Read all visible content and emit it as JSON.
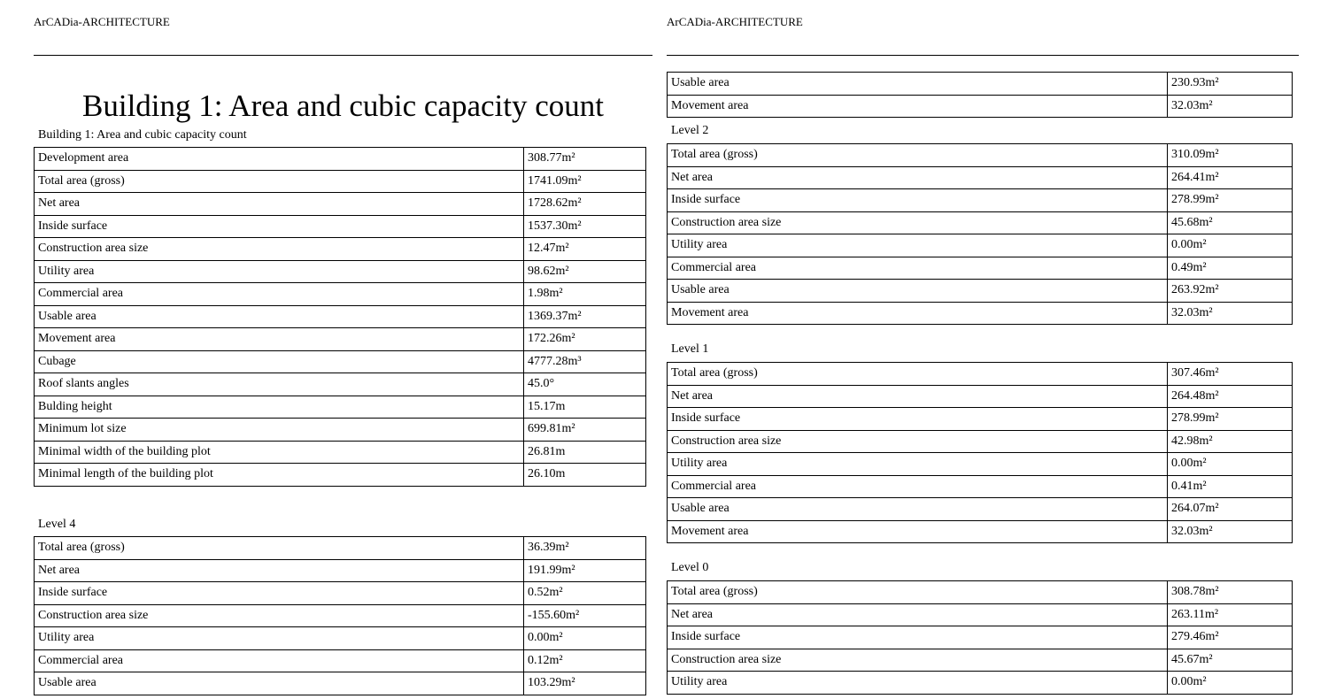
{
  "header_text": "ArCADia-ARCHITECTURE",
  "left_page": {
    "title": "Building 1: Area and cubic capacity count",
    "sections": [
      {
        "label": "Building 1: Area and cubic capacity count",
        "rows": [
          [
            "Development area",
            "308.77m²"
          ],
          [
            "Total area (gross)",
            "1741.09m²"
          ],
          [
            "Net area",
            "1728.62m²"
          ],
          [
            "Inside surface",
            "1537.30m²"
          ],
          [
            "Construction area size",
            "12.47m²"
          ],
          [
            "Utility area",
            "98.62m²"
          ],
          [
            "Commercial area",
            "1.98m²"
          ],
          [
            "Usable area",
            "1369.37m²"
          ],
          [
            "Movement area",
            "172.26m²"
          ],
          [
            "Cubage",
            "4777.28m³"
          ],
          [
            "Roof slants angles",
            "45.0°"
          ],
          [
            "Bulding height",
            "15.17m"
          ],
          [
            "Minimum lot size",
            "699.81m²"
          ],
          [
            "Minimal width of the building plot",
            "26.81m"
          ],
          [
            "Minimal length of the building plot",
            "26.10m"
          ]
        ]
      },
      {
        "label": "Level 4",
        "rows": [
          [
            "Total area (gross)",
            "36.39m²"
          ],
          [
            "Net area",
            "191.99m²"
          ],
          [
            "Inside surface",
            "0.52m²"
          ],
          [
            "Construction area size",
            "-155.60m²"
          ],
          [
            "Utility area",
            "0.00m²"
          ],
          [
            "Commercial area",
            "0.12m²"
          ],
          [
            "Usable area",
            "103.29m²"
          ]
        ]
      }
    ]
  },
  "right_page": {
    "sections": [
      {
        "label": "",
        "rows": [
          [
            "Usable area",
            "230.93m²"
          ],
          [
            "Movement area",
            "32.03m²"
          ]
        ]
      },
      {
        "label": "Level 2",
        "rows": [
          [
            "Total area (gross)",
            "310.09m²"
          ],
          [
            "Net area",
            "264.41m²"
          ],
          [
            "Inside surface",
            "278.99m²"
          ],
          [
            "Construction area size",
            "45.68m²"
          ],
          [
            "Utility area",
            "0.00m²"
          ],
          [
            "Commercial area",
            "0.49m²"
          ],
          [
            "Usable area",
            "263.92m²"
          ],
          [
            "Movement area",
            "32.03m²"
          ]
        ]
      },
      {
        "label": "Level 1",
        "rows": [
          [
            "Total area (gross)",
            "307.46m²"
          ],
          [
            "Net area",
            "264.48m²"
          ],
          [
            "Inside surface",
            "278.99m²"
          ],
          [
            "Construction area size",
            "42.98m²"
          ],
          [
            "Utility area",
            "0.00m²"
          ],
          [
            "Commercial area",
            "0.41m²"
          ],
          [
            "Usable area",
            "264.07m²"
          ],
          [
            "Movement area",
            "32.03m²"
          ]
        ]
      },
      {
        "label": "Level 0",
        "rows": [
          [
            "Total area (gross)",
            "308.78m²"
          ],
          [
            "Net area",
            "263.11m²"
          ],
          [
            "Inside surface",
            "279.46m²"
          ],
          [
            "Construction area size",
            "45.67m²"
          ],
          [
            "Utility area",
            "0.00m²"
          ]
        ]
      }
    ]
  }
}
